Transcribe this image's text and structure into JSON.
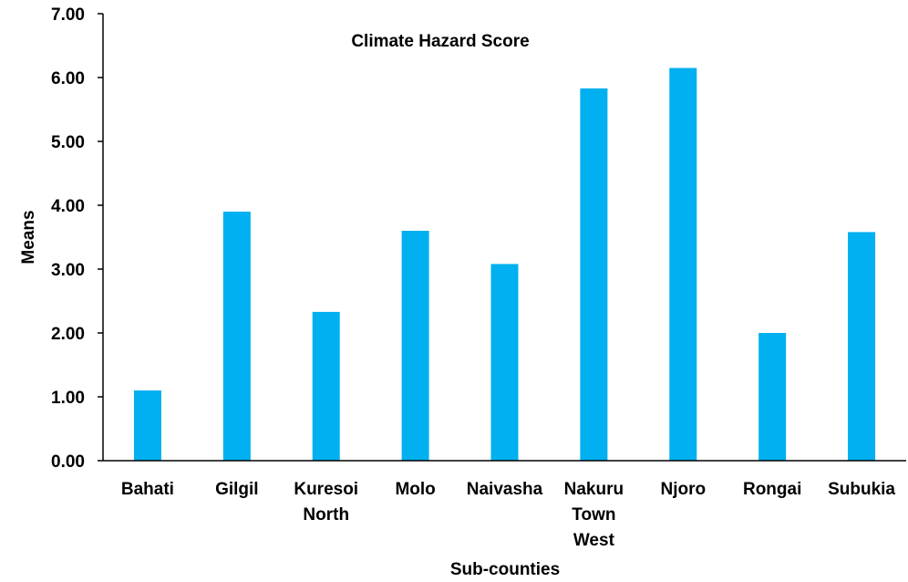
{
  "chart_data": {
    "type": "bar",
    "title": "Climate Hazard Score",
    "xlabel": "Sub-counties",
    "ylabel": "Means",
    "ylim": [
      0,
      7
    ],
    "ytick_step": 1,
    "ytick_labels": [
      "0.00",
      "1.00",
      "2.00",
      "3.00",
      "4.00",
      "5.00",
      "6.00",
      "7.00"
    ],
    "categories": [
      [
        "Bahati"
      ],
      [
        "Gilgil"
      ],
      [
        "Kuresoi",
        "North"
      ],
      [
        "Molo"
      ],
      [
        "Naivasha"
      ],
      [
        "Nakuru",
        "Town",
        "West"
      ],
      [
        "Njoro"
      ],
      [
        "Rongai"
      ],
      [
        "Subukia"
      ]
    ],
    "values": [
      1.1,
      3.9,
      2.33,
      3.6,
      3.08,
      5.83,
      6.15,
      2.0,
      3.58
    ],
    "bar_color": "#00B0F0",
    "grid": false,
    "legend": "none"
  }
}
